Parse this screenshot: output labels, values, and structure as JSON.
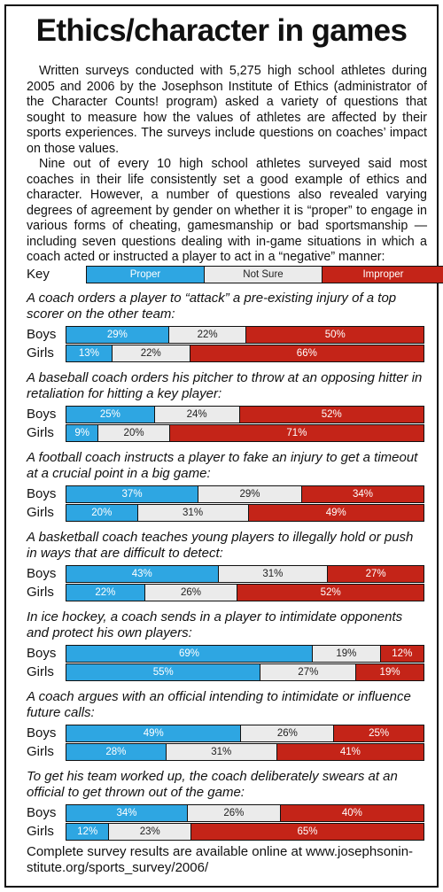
{
  "title": "Ethics/character in games",
  "intro": {
    "p1": "Written surveys conducted with 5,275 high school athletes during 2005 and 2006 by the Josephson Institute of Ethics (administrator of the Character Counts! program) asked a variety of questions that sought to measure how the values of athletes are affected by their sports experiences. The surveys include questions on coaches’ impact on those values.",
    "p2": "Nine out of every 10 high school athletes surveyed said most coaches in their life consistently set a good example of ethics and character. However, a number of questions also revealed varying degrees of agreement by gender on whether it is “proper” to engage in various forms of cheating, gamesmanship or bad sportsmanship — including seven questions dealing with in-game situations in which a coach acted or instructed a player to act in a “negative” manner:"
  },
  "key": {
    "label": "Key",
    "items": [
      "Proper",
      "Not Sure",
      "Improper"
    ]
  },
  "colors": {
    "proper": "#2ea6e2",
    "not_sure": "#ebebeb",
    "improper": "#c42418"
  },
  "chart_data": {
    "type": "bar",
    "stacked": true,
    "orientation": "horizontal",
    "series_names": [
      "Proper",
      "Not Sure",
      "Improper"
    ],
    "groups": [
      "Boys",
      "Girls"
    ],
    "questions": [
      {
        "text": "A coach orders a player to “attack” a pre-existing injury of a top scorer on the other team:",
        "boys": [
          29,
          22,
          50
        ],
        "girls": [
          13,
          22,
          66
        ]
      },
      {
        "text": "A baseball coach orders his pitcher to throw at an opposing hitter in retaliation for hitting a key player:",
        "boys": [
          25,
          24,
          52
        ],
        "girls": [
          9,
          20,
          71
        ]
      },
      {
        "text": "A football coach instructs a player to fake an injury to get a timeout at a crucial point in a big game:",
        "boys": [
          37,
          29,
          34
        ],
        "girls": [
          20,
          31,
          49
        ]
      },
      {
        "text": "A basketball coach teaches young players to illegally hold or push in ways that are difficult to detect:",
        "boys": [
          43,
          31,
          27
        ],
        "girls": [
          22,
          26,
          52
        ]
      },
      {
        "text": "In ice hockey, a coach sends in a player to intimidate opponents and protect his own players:",
        "boys": [
          69,
          19,
          12
        ],
        "girls": [
          55,
          27,
          19
        ]
      },
      {
        "text": "A coach argues with an official intending to intimidate or influence future calls:",
        "boys": [
          49,
          26,
          25
        ],
        "girls": [
          28,
          31,
          41
        ]
      },
      {
        "text": "To get his team worked up, the coach deliberately swears at an official to get thrown out of the game:",
        "boys": [
          34,
          26,
          40
        ],
        "girls": [
          12,
          23,
          65
        ]
      }
    ]
  },
  "footer": "Complete survey results are available online at www.josephsonin-stitute.org/sports_survey/2006/"
}
